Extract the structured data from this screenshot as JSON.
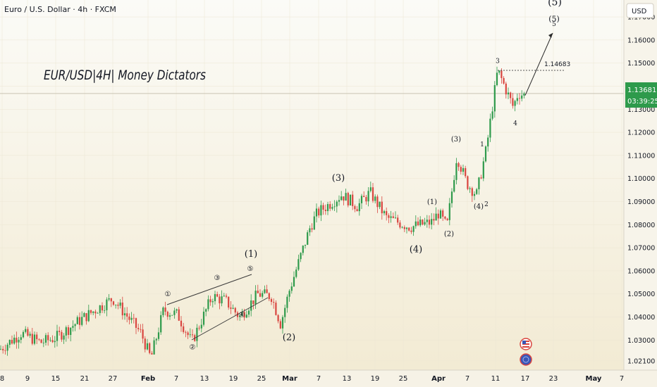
{
  "header": {
    "symbol_title": "Euro / U.S. Dollar · 4h · FXCM",
    "currency": "USD"
  },
  "overlay_title": "EUR/USD|4H| Money Dictators",
  "price_badge": {
    "price": "1.13681",
    "countdown": "03:39:25"
  },
  "colors": {
    "background_top": "#fbfbf7",
    "background_bottom": "#f2ead2",
    "bull": "#2e9a4b",
    "bear": "#d9453f",
    "badge": "#2e9a4b",
    "text": "#131722"
  },
  "icons": [
    "us-flag-event-icon",
    "globe-event-icon"
  ],
  "chart_data": {
    "type": "candlestick",
    "title": "EUR/USD|4H| Money Dictators",
    "ylim": [
      1.017,
      1.1755
    ],
    "y_ticks": [
      "1.17000",
      "1.16000",
      "1.15000",
      "1.14000",
      "1.13000",
      "1.12000",
      "1.11000",
      "1.10000",
      "1.09000",
      "1.08000",
      "1.07000",
      "1.06000",
      "1.05000",
      "1.04000",
      "1.03000",
      "1.02100"
    ],
    "x_ticks": [
      "8",
      "9",
      "15",
      "21",
      "27",
      "Feb",
      "7",
      "13",
      "19",
      "25",
      "Mar",
      "7",
      "13",
      "19",
      "25",
      "Apr",
      "7",
      "11",
      "17",
      "23",
      "May",
      "7"
    ],
    "price_path": [
      [
        "8",
        1.026
      ],
      [
        "9",
        1.033
      ],
      [
        "12",
        1.029
      ],
      [
        "15",
        1.031
      ],
      [
        "21",
        1.04
      ],
      [
        "27",
        1.048
      ],
      [
        "Feb",
        1.033
      ],
      [
        "3",
        1.022
      ],
      [
        "5",
        1.043
      ],
      [
        "8",
        1.041
      ],
      [
        "10",
        1.029
      ],
      [
        "13",
        1.049
      ],
      [
        "16",
        1.047
      ],
      [
        "19",
        1.04
      ],
      [
        "22",
        1.05
      ],
      [
        "26",
        1.049
      ],
      [
        "28",
        1.037
      ],
      [
        "Mar",
        1.052
      ],
      [
        "5",
        1.079
      ],
      [
        "7",
        1.085
      ],
      [
        "11",
        1.093
      ],
      [
        "14",
        1.088
      ],
      [
        "18",
        1.094
      ],
      [
        "21",
        1.083
      ],
      [
        "25",
        1.079
      ],
      [
        "27",
        1.081
      ],
      [
        "Mar 31",
        1.085
      ],
      [
        "Apr 1",
        1.079
      ],
      [
        "3",
        1.11
      ],
      [
        "6",
        1.098
      ],
      [
        "8",
        1.093
      ],
      [
        "10",
        1.113
      ],
      [
        "11",
        1.147
      ],
      [
        "14",
        1.131
      ],
      [
        "15",
        1.137
      ],
      [
        "17",
        1.136
      ]
    ],
    "last_price": 1.13681,
    "reference_level": {
      "label": "1.14683",
      "value": 1.14683
    },
    "projection": [
      [
        "17",
        1.136
      ],
      [
        "20",
        1.163
      ]
    ],
    "wave_labels": [
      {
        "text": "①",
        "date": "Feb 6",
        "price": 1.049
      },
      {
        "text": "②",
        "date": "Feb 10",
        "price": 1.026
      },
      {
        "text": "③",
        "date": "Feb 19",
        "price": 1.056
      },
      {
        "text": "④",
        "date": "Feb 24",
        "price": 1.04
      },
      {
        "text": "⑤",
        "date": "Feb 28",
        "price": 1.06
      },
      {
        "text": "(1)",
        "date": "Feb 28",
        "price": 1.066
      },
      {
        "text": "(2)",
        "date": "Mar 4",
        "price": 1.03
      },
      {
        "text": "(3)",
        "date": "Mar 13",
        "price": 1.099
      },
      {
        "text": "(4)",
        "date": "Apr 1",
        "price": 1.068
      },
      {
        "text": "(1)",
        "date": "Apr 3",
        "price": 1.089
      },
      {
        "text": "(2)",
        "date": "Apr 4",
        "price": 1.075
      },
      {
        "text": "(3)",
        "date": "Apr 7",
        "price": 1.116
      },
      {
        "text": "(4)",
        "date": "Apr 9",
        "price": 1.087
      },
      {
        "text": "1",
        "date": "Apr 10",
        "price": 1.114
      },
      {
        "text": "2",
        "date": "Apr 10",
        "price": 1.088
      },
      {
        "text": "3",
        "date": "Apr 11",
        "price": 1.15
      },
      {
        "text": "4",
        "date": "Apr 15",
        "price": 1.123
      },
      {
        "text": "5",
        "date": "Apr 20",
        "price": 1.166
      },
      {
        "text": "(5)",
        "date": "Apr 20",
        "price": 1.168
      },
      {
        "text": "(5)",
        "date": "Apr 20",
        "price": 1.175
      }
    ]
  }
}
